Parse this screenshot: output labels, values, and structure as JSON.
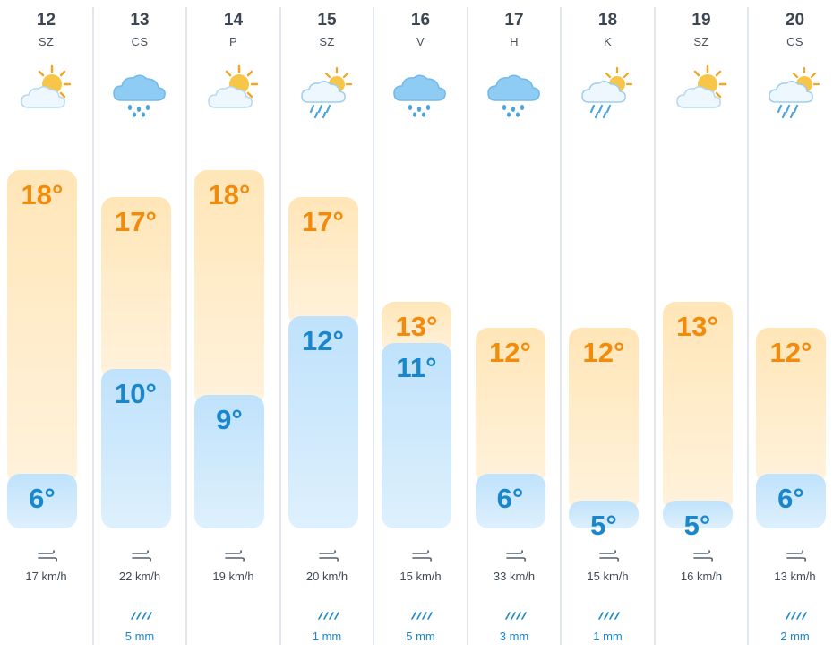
{
  "colors": {
    "max_text": "#f28a0c",
    "min_text": "#1a86cc",
    "precip_text": "#1a86cc"
  },
  "days": [
    {
      "date": "12",
      "weekday": "SZ",
      "icon": "sun-behind-cloud-icon",
      "max": "18°",
      "min": "6°",
      "wind": "17 km/h",
      "precip": ""
    },
    {
      "date": "13",
      "weekday": "CS",
      "icon": "rain-cloud-icon",
      "max": "17°",
      "min": "10°",
      "wind": "22 km/h",
      "precip": "5 mm"
    },
    {
      "date": "14",
      "weekday": "P",
      "icon": "sun-behind-cloud-icon",
      "max": "18°",
      "min": "9°",
      "wind": "19 km/h",
      "precip": ""
    },
    {
      "date": "15",
      "weekday": "SZ",
      "icon": "sun-rain-cloud-icon",
      "max": "17°",
      "min": "12°",
      "wind": "20 km/h",
      "precip": "1 mm"
    },
    {
      "date": "16",
      "weekday": "V",
      "icon": "rain-cloud-icon",
      "max": "13°",
      "min": "11°",
      "wind": "15 km/h",
      "precip": "5 mm"
    },
    {
      "date": "17",
      "weekday": "H",
      "icon": "rain-cloud-icon",
      "max": "12°",
      "min": "6°",
      "wind": "33 km/h",
      "precip": "3 mm"
    },
    {
      "date": "18",
      "weekday": "K",
      "icon": "sun-rain-cloud-icon",
      "max": "12°",
      "min": "5°",
      "wind": "15 km/h",
      "precip": "1 mm"
    },
    {
      "date": "19",
      "weekday": "SZ",
      "icon": "sun-behind-cloud-icon",
      "max": "13°",
      "min": "5°",
      "wind": "16 km/h",
      "precip": ""
    },
    {
      "date": "20",
      "weekday": "CS",
      "icon": "sun-rain-cloud-icon",
      "max": "12°",
      "min": "6°",
      "wind": "13 km/h",
      "precip": "2 mm"
    }
  ]
}
